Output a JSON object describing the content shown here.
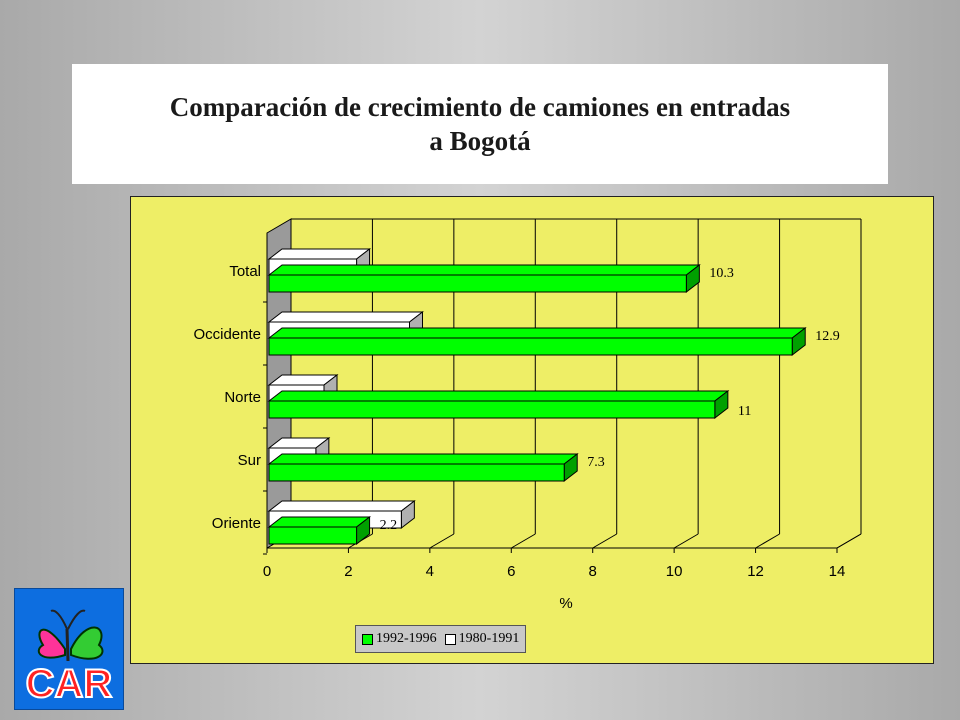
{
  "title": "Comparación de crecimiento de camiones en entradas a Bogotá",
  "logo": {
    "text": "CAR",
    "icon": "butterfly-icon"
  },
  "colors": {
    "series_1992": "#00ff00",
    "series_1980": "#ffffff",
    "panel": "#eeee66"
  },
  "chart_data": {
    "type": "bar",
    "orientation": "horizontal",
    "style": "3d",
    "categories": [
      "Total",
      "Occidente",
      "Norte",
      "Sur",
      "Oriente"
    ],
    "series": [
      {
        "name": "1992-1996",
        "values": [
          10.3,
          12.9,
          11,
          7.3,
          2.2
        ]
      },
      {
        "name": "1980-1991",
        "values": [
          2.2,
          3.5,
          1.4,
          1.2,
          3.3
        ]
      }
    ],
    "data_labels": {
      "1992-1996": [
        "10.3",
        "12.9",
        "11",
        "7.3",
        "2.2"
      ]
    },
    "xlabel": "%",
    "ylabel": "",
    "xlim": [
      0,
      14
    ],
    "xticks": [
      0,
      2,
      4,
      6,
      8,
      10,
      12,
      14
    ],
    "grid": "vertical",
    "legend": "bottom"
  }
}
